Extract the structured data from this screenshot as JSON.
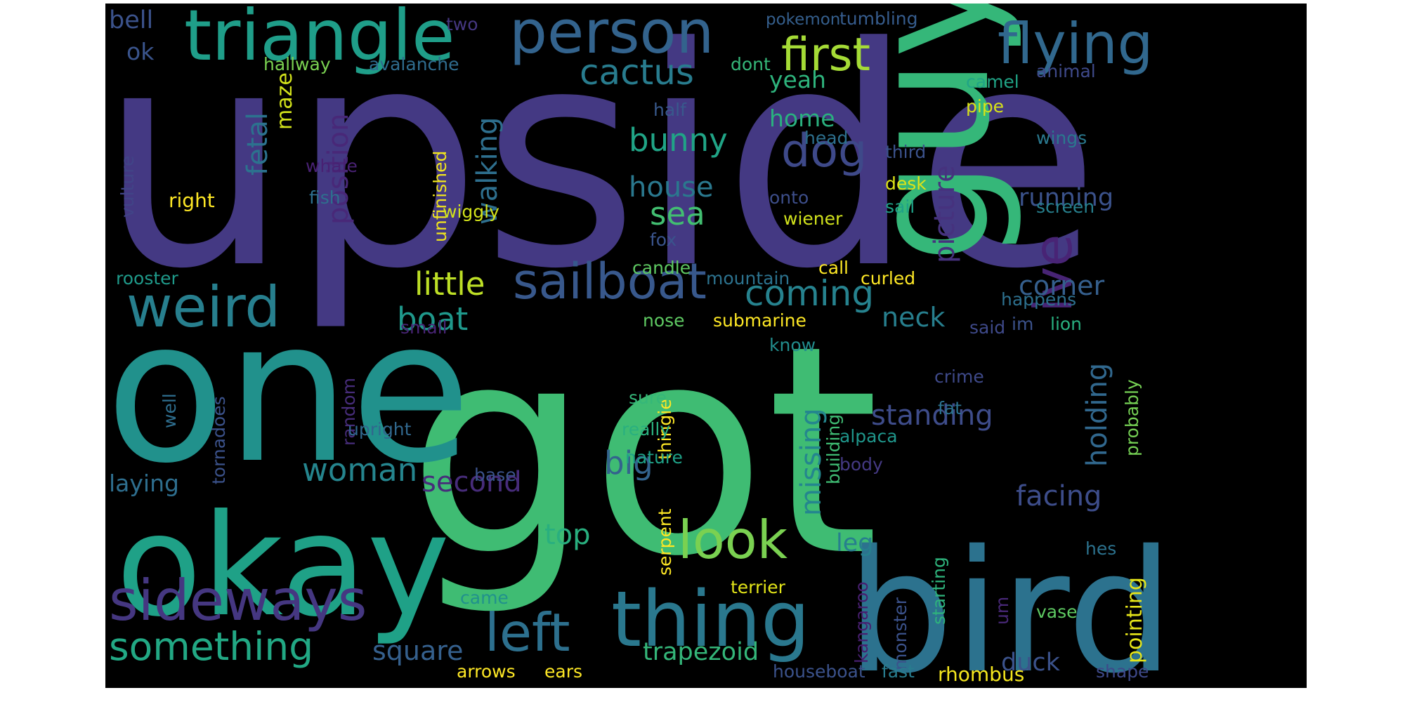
{
  "background": "#000000",
  "palette": [
    "#440154",
    "#3b528b",
    "#21918c",
    "#5ec962",
    "#fde725"
  ],
  "words": [
    {
      "text": "upside",
      "color": "#443983"
    },
    {
      "text": "got",
      "color": "#3fbc73"
    },
    {
      "text": "one",
      "color": "#21918c"
    },
    {
      "text": "okay",
      "color": "#1fa187"
    },
    {
      "text": "bird",
      "color": "#2c728e"
    },
    {
      "text": "guy",
      "color": "#35b779"
    },
    {
      "text": "thing",
      "color": "#2a788e"
    },
    {
      "text": "triangle",
      "color": "#1f9e89"
    },
    {
      "text": "person",
      "color": "#33638d"
    },
    {
      "text": "flying",
      "color": "#31688e"
    },
    {
      "text": "weird",
      "color": "#277f8e"
    },
    {
      "text": "sideways",
      "color": "#453781"
    },
    {
      "text": "sailboat",
      "color": "#38588c"
    },
    {
      "text": "look",
      "color": "#7ad151"
    },
    {
      "text": "left",
      "color": "#2d708e"
    },
    {
      "text": "dog",
      "color": "#3e4989"
    },
    {
      "text": "first",
      "color": "#a5db36"
    },
    {
      "text": "something",
      "color": "#22a884"
    },
    {
      "text": "cactus",
      "color": "#287c8e"
    },
    {
      "text": "ive",
      "color": "#482475"
    },
    {
      "text": "coming",
      "color": "#26828e"
    },
    {
      "text": "boat",
      "color": "#1f988b"
    },
    {
      "text": "woman",
      "color": "#25858e"
    },
    {
      "text": "little",
      "color": "#bddf26"
    },
    {
      "text": "bunny",
      "color": "#20a486"
    },
    {
      "text": "house",
      "color": "#2a788e"
    },
    {
      "text": "sea",
      "color": "#42be71"
    },
    {
      "text": "picture",
      "color": "#46327e"
    },
    {
      "text": "position",
      "color": "#482878"
    },
    {
      "text": "fetal",
      "color": "#2c728e"
    },
    {
      "text": "missing",
      "color": "#24868e"
    },
    {
      "text": "holding",
      "color": "#31688e"
    },
    {
      "text": "walking",
      "color": "#2e6f8e"
    },
    {
      "text": "running",
      "color": "#3b528b"
    },
    {
      "text": "neck",
      "color": "#277f8e"
    },
    {
      "text": "big",
      "color": "#33638d"
    },
    {
      "text": "standing",
      "color": "#3e4c8a"
    },
    {
      "text": "facing",
      "color": "#3d4d8a"
    },
    {
      "text": "second",
      "color": "#472c7a"
    },
    {
      "text": "corner",
      "color": "#355f8d"
    },
    {
      "text": "square",
      "color": "#35608d"
    },
    {
      "text": "top",
      "color": "#29af7f"
    },
    {
      "text": "trapezoid",
      "color": "#34b679"
    },
    {
      "text": "duck",
      "color": "#3b528b"
    },
    {
      "text": "leg",
      "color": "#277f8e"
    },
    {
      "text": "home",
      "color": "#2ab07f"
    },
    {
      "text": "yeah",
      "color": "#2eb37c"
    },
    {
      "text": "pointing",
      "color": "#e5e419"
    },
    {
      "text": "laying",
      "color": "#2e6e8e"
    },
    {
      "text": "bell",
      "color": "#3b528b"
    },
    {
      "text": "ok",
      "color": "#3a548c"
    },
    {
      "text": "maze",
      "color": "#d2e21b"
    },
    {
      "text": "hallway",
      "color": "#7ad151"
    },
    {
      "text": "avalanche",
      "color": "#2f6c8e"
    },
    {
      "text": "two",
      "color": "#453781"
    },
    {
      "text": "pokemon",
      "color": "#355f8d"
    },
    {
      "text": "tumbling",
      "color": "#365c8d"
    },
    {
      "text": "dont",
      "color": "#35b779"
    },
    {
      "text": "animal",
      "color": "#3e4989"
    },
    {
      "text": "camel",
      "color": "#20a486"
    },
    {
      "text": "pipe",
      "color": "#d8e219"
    },
    {
      "text": "half",
      "color": "#38598c"
    },
    {
      "text": "head",
      "color": "#2d708e"
    },
    {
      "text": "third",
      "color": "#3b528b"
    },
    {
      "text": "wings",
      "color": "#2a788e"
    },
    {
      "text": "desk",
      "color": "#dde318"
    },
    {
      "text": "sail",
      "color": "#1fa187"
    },
    {
      "text": "screen",
      "color": "#27808e"
    },
    {
      "text": "onto",
      "color": "#3d4e8a"
    },
    {
      "text": "wiener",
      "color": "#d0e11c"
    },
    {
      "text": "whale",
      "color": "#482173"
    },
    {
      "text": "fish",
      "color": "#2e6f8e"
    },
    {
      "text": "unfinished",
      "color": "#f1e51d"
    },
    {
      "text": "wiggly",
      "color": "#d2e21b"
    },
    {
      "text": "fox",
      "color": "#3a548c"
    },
    {
      "text": "call",
      "color": "#fde725"
    },
    {
      "text": "right",
      "color": "#fde725"
    },
    {
      "text": "vulture",
      "color": "#414487"
    },
    {
      "text": "rooster",
      "color": "#1f9a8a"
    },
    {
      "text": "candle",
      "color": "#5ec962"
    },
    {
      "text": "mountain",
      "color": "#2c728e"
    },
    {
      "text": "curled",
      "color": "#fde725"
    },
    {
      "text": "happens",
      "color": "#2d708e"
    },
    {
      "text": "lion",
      "color": "#29af7f"
    },
    {
      "text": "nose",
      "color": "#5ec962"
    },
    {
      "text": "submarine",
      "color": "#fde725"
    },
    {
      "text": "small",
      "color": "#482475"
    },
    {
      "text": "said",
      "color": "#3e4989"
    },
    {
      "text": "im",
      "color": "#3b528b"
    },
    {
      "text": "know",
      "color": "#228d8d"
    },
    {
      "text": "crime",
      "color": "#3e4989"
    },
    {
      "text": "fat",
      "color": "#2c728e"
    },
    {
      "text": "probably",
      "color": "#75d054"
    },
    {
      "text": "tornadoes",
      "color": "#3b528b"
    },
    {
      "text": "random",
      "color": "#472d7b"
    },
    {
      "text": "well",
      "color": "#2e6e8e"
    },
    {
      "text": "upright",
      "color": "#31688e"
    },
    {
      "text": "thingie",
      "color": "#fde725"
    },
    {
      "text": "sure",
      "color": "#35b779"
    },
    {
      "text": "really",
      "color": "#2ab07f"
    },
    {
      "text": "nature",
      "color": "#1fa187"
    },
    {
      "text": "building",
      "color": "#3fbc73"
    },
    {
      "text": "alpaca",
      "color": "#1f968b"
    },
    {
      "text": "body",
      "color": "#443983"
    },
    {
      "text": "base",
      "color": "#3b528b"
    },
    {
      "text": "serpent",
      "color": "#fde725"
    },
    {
      "text": "terrier",
      "color": "#e2e418"
    },
    {
      "text": "came",
      "color": "#21918c"
    },
    {
      "text": "kangaroo",
      "color": "#481f70"
    },
    {
      "text": "monster",
      "color": "#3b528b"
    },
    {
      "text": "starting",
      "color": "#2eb37c"
    },
    {
      "text": "um",
      "color": "#482878"
    },
    {
      "text": "vase",
      "color": "#5ec962"
    },
    {
      "text": "hes",
      "color": "#2c728e"
    },
    {
      "text": "arrows",
      "color": "#fde725"
    },
    {
      "text": "ears",
      "color": "#fde725"
    },
    {
      "text": "houseboat",
      "color": "#3b528b"
    },
    {
      "text": "fast",
      "color": "#287c8e"
    },
    {
      "text": "rhombus",
      "color": "#f4e61e"
    },
    {
      "text": "shape",
      "color": "#3e4989"
    }
  ]
}
